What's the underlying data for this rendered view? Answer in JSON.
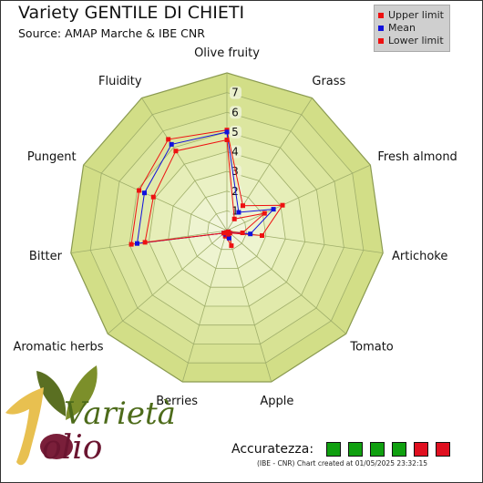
{
  "header": {
    "title": "Variety GENTILE DI CHIETI",
    "source": "Source: AMAP Marche & IBE CNR"
  },
  "legend": [
    {
      "label": "Upper limit",
      "color": "#ee1111"
    },
    {
      "label": "Mean",
      "color": "#1111dd"
    },
    {
      "label": "Lower limit",
      "color": "#ee1111"
    }
  ],
  "chart_data": {
    "type": "radar",
    "axes": [
      "Olive fruity",
      "Grass",
      "Fresh almond",
      "Artichoke",
      "Tomato",
      "Apple",
      "Berries",
      "Aromatic herbs",
      "Bitter",
      "Pungent",
      "Fluidity"
    ],
    "scale_labels": [
      "1",
      "2",
      "3",
      "4",
      "5",
      "6",
      "7"
    ],
    "rmax": 8,
    "grid_rings": 8,
    "series": [
      {
        "name": "Upper limit",
        "color": "#ee1111",
        "values": [
          5.1,
          1.5,
          3.1,
          1.8,
          0.2,
          0.8,
          0.3,
          0.2,
          4.9,
          4.9,
          5.5
        ]
      },
      {
        "name": "Mean",
        "color": "#1111dd",
        "values": [
          5.0,
          1.1,
          2.6,
          1.2,
          0.1,
          0.4,
          0.2,
          0.2,
          4.6,
          4.6,
          5.2
        ]
      },
      {
        "name": "Lower limit",
        "color": "#ee1111",
        "values": [
          4.6,
          0.7,
          2.1,
          0.8,
          0.1,
          0.2,
          0.1,
          0.2,
          4.2,
          4.1,
          4.8
        ]
      }
    ]
  },
  "logo": {
    "word1": "Varietà",
    "word2": "olio"
  },
  "accuracy": {
    "label": "Accuratezza:",
    "boxes": [
      "#10a010",
      "#10a010",
      "#10a010",
      "#10a010",
      "#e01020",
      "#e01020"
    ]
  },
  "footer": "(IBE - CNR) Chart created at 01/05/2025 23:32:15"
}
